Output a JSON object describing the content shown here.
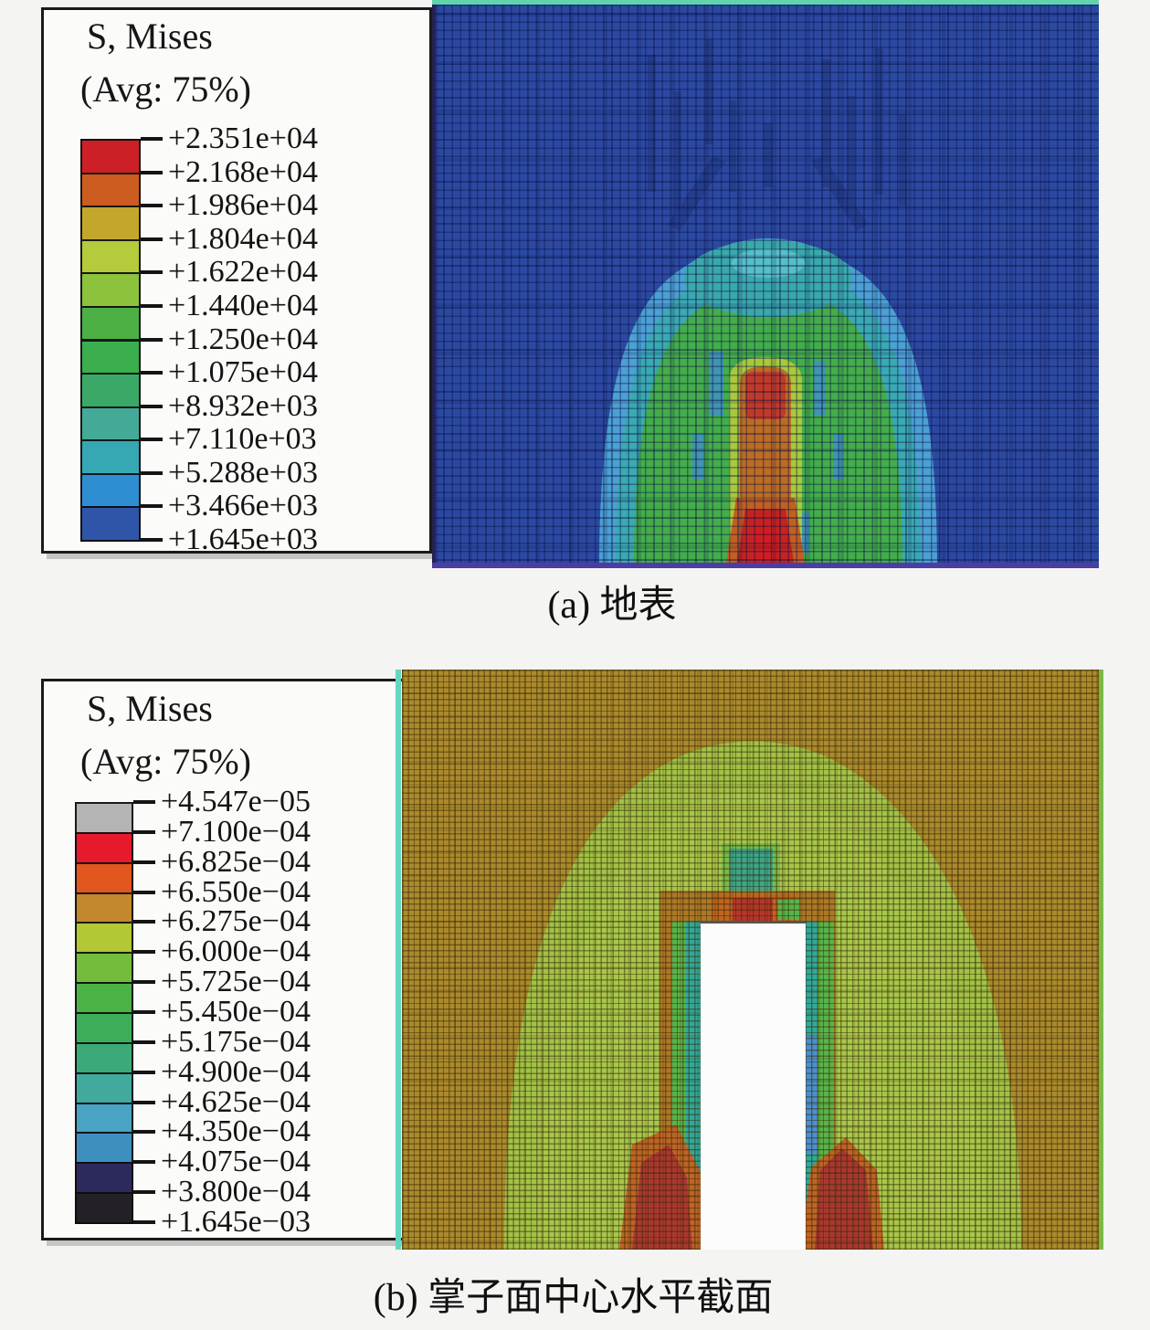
{
  "page": {
    "background": "#f4f4f2"
  },
  "figures": [
    {
      "id": "a",
      "caption": "(a) 地表",
      "legend": {
        "title": "S, Mises",
        "subtitle": "(Avg: 75%)",
        "labels": [
          "+2.351e+04",
          "+2.168e+04",
          "+1.986e+04",
          "+1.804e+04",
          "+1.622e+04",
          "+1.440e+04",
          "+1.250e+04",
          "+1.075e+04",
          "+8.932e+03",
          "+7.110e+03",
          "+5.288e+03",
          "+3.466e+03",
          "+1.645e+03"
        ],
        "colors": [
          "#cd2026",
          "#cc5c20",
          "#c3a62c",
          "#b5cb3b",
          "#8cc23c",
          "#4cb044",
          "#3bae4e",
          "#3aa968",
          "#43aa97",
          "#35a8b4",
          "#2f8ed2",
          "#2f55a8"
        ]
      },
      "plot": {
        "background": "#2c49a2",
        "mesh_line": "#14215f",
        "top_edge_line": "#62d4ad",
        "bottom_edge_line": "#4c3da3",
        "region_colors": {
          "outer_ring": "#4ba0d4",
          "middle_ring": "#3aa9b2",
          "interior": "#44ad4b",
          "cap": "#3aa9ac",
          "cap_light": "#5cc3cc",
          "speck_blue": "#3f8ed2",
          "column_fringe": "#a8c93c",
          "column": "#bc6c25",
          "column_top_red": "#c13a28",
          "bottom_fringe": "#c06023",
          "peak_red": "#c5231f",
          "peak_core": "#d01d1f",
          "streak": "#1d3479"
        }
      }
    },
    {
      "id": "b",
      "caption": "(b) 掌子面中心水平截面",
      "legend": {
        "title": "S, Mises",
        "subtitle": "(Avg: 75%)",
        "labels": [
          "+4.547e−05",
          "+7.100e−04",
          "+6.825e−04",
          "+6.550e−04",
          "+6.275e−04",
          "+6.000e−04",
          "+5.725e−04",
          "+5.450e−04",
          "+5.175e−04",
          "+4.900e−04",
          "+4.625e−04",
          "+4.350e−04",
          "+4.075e−04",
          "+3.800e−04",
          "+1.645e−03"
        ],
        "colors": [
          "#b4b4b4",
          "#e7192c",
          "#e25620",
          "#c3872e",
          "#b4c734",
          "#74bd3c",
          "#4bb246",
          "#3cae59",
          "#3caa78",
          "#42a99e",
          "#49a3c3",
          "#3e8fbe",
          "#2c2a5d",
          "#232127"
        ]
      },
      "plot": {
        "background": "#ab8a2d",
        "mesh_line": "#3a2c06",
        "left_edge_line": "#66d6c4",
        "right_edge_line": "#7cb944",
        "region_colors": {
          "arch": "#a2c247",
          "arch_inner": "#a9c94d",
          "lining_brown": "#ad7827",
          "strip_green": "#58b44a",
          "strip_teal": "#2fa99d",
          "strip_blue": "#4b90d0",
          "teal_patch": "#3aa68b",
          "teal_patch_halo": "#6db84b",
          "hotspot_red": "#ab3730",
          "hotspot_orange": "#bf6426",
          "crown_red": "#b8352a",
          "crown_orange": "#c2641f",
          "excavation_white": "#fcfcfc"
        }
      }
    }
  ],
  "chart_data": [
    {
      "type": "heatmap",
      "title": "S, Mises",
      "subtitle": "(Avg: 75%)",
      "caption": "(a) 地表",
      "colorbar_tick_labels": [
        "+2.351e+04",
        "+2.168e+04",
        "+1.986e+04",
        "+1.804e+04",
        "+1.622e+04",
        "+1.440e+04",
        "+1.250e+04",
        "+1.075e+04",
        "+8.932e+03",
        "+7.110e+03",
        "+5.288e+03",
        "+3.466e+03",
        "+1.645e+03"
      ],
      "colorbar_values": [
        23510,
        21680,
        19860,
        18040,
        16220,
        14400,
        12500,
        10750,
        8932,
        7110,
        5288,
        3466,
        1645
      ],
      "colorbar_colors": [
        "#cd2026",
        "#cc5c20",
        "#c3a62c",
        "#b5cb3b",
        "#8cc23c",
        "#4cb044",
        "#3bae4e",
        "#3aa968",
        "#43aa97",
        "#35a8b4",
        "#2f8ed2",
        "#2f55a8"
      ],
      "legend_position": "left",
      "description": "Abaqus von Mises stress contour of ground surface: uniform low-stress blue meshed field with a central arched zone (light blue, teal, green rings) and a vertical orange-red high-stress column peaking red at bottom center."
    },
    {
      "type": "heatmap",
      "title": "S, Mises",
      "subtitle": "(Avg: 75%)",
      "caption": "(b) 掌子面中心水平截面",
      "colorbar_tick_labels": [
        "+4.547e−05",
        "+7.100e−04",
        "+6.825e−04",
        "+6.550e−04",
        "+6.275e−04",
        "+6.000e−04",
        "+5.725e−04",
        "+5.450e−04",
        "+5.175e−04",
        "+4.900e−04",
        "+4.625e−04",
        "+4.350e−04",
        "+4.075e−04",
        "+3.800e−04",
        "+1.645e−03"
      ],
      "colorbar_values": [
        4.547e-05,
        0.00071,
        0.0006825,
        0.000655,
        0.0006275,
        0.0006,
        0.0005725,
        0.000545,
        0.0005175,
        0.00049,
        0.0004625,
        0.000435,
        0.0004075,
        0.00038,
        0.001645
      ],
      "colorbar_colors": [
        "#b4b4b4",
        "#e7192c",
        "#e25620",
        "#c3872e",
        "#b4c734",
        "#74bd3c",
        "#4bb246",
        "#3cae59",
        "#3caa78",
        "#42a99e",
        "#49a3c3",
        "#3e8fbe",
        "#2c2a5d",
        "#232127"
      ],
      "legend_position": "left",
      "description": "Horizontal section through tunnel face center: olive meshed far field, light-green arched disturbed zone, white unexcavated rectangular tunnel core flanked by teal/green strips, brown lining band, red hotspots at tunnel crown and both bottom corners."
    }
  ]
}
